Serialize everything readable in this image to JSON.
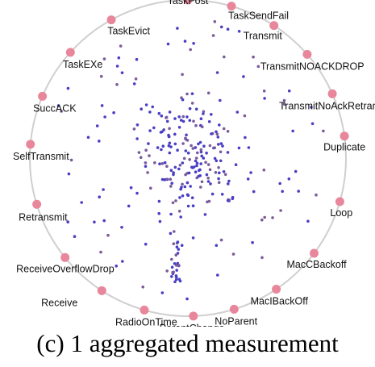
{
  "colors": {
    "ring": "#cfcfcf",
    "node": "#e8879b",
    "dot_blue": "#4a3fc4",
    "dot_purple": "#7a5a9a"
  },
  "nodes": [
    {
      "name": "TaskPost",
      "angle": -90
    },
    {
      "name": "TaskSendFail",
      "angle": -74
    },
    {
      "name": "Transmit",
      "angle": -57
    },
    {
      "name": "TransmitNOACKDROP",
      "angle": -41
    },
    {
      "name": "TransmitNoAckRetrans",
      "angle": -24
    },
    {
      "name": "Duplicate",
      "angle": -8
    },
    {
      "name": "Loop",
      "angle": 16
    },
    {
      "name": "MacCBackoff",
      "angle": 37
    },
    {
      "name": "MacIBackOff",
      "angle": 56
    },
    {
      "name": "NoParent",
      "angle": 73
    },
    {
      "name": "ParentChange",
      "angle": 88
    },
    {
      "name": "RadioOnTime",
      "angle": 106
    },
    {
      "name": "Receive",
      "angle": 123
    },
    {
      "name": "ReceiveOverflowDrop",
      "angle": 141
    },
    {
      "name": "Retransmit",
      "angle": 163
    },
    {
      "name": "SelfTransmit",
      "angle": 185
    },
    {
      "name": "SuccACK",
      "angle": 203
    },
    {
      "name": "TaskEXe",
      "angle": 222
    },
    {
      "name": "TaskEvict",
      "angle": 241
    }
  ],
  "caption": "(c) 1 aggregated measurement"
}
